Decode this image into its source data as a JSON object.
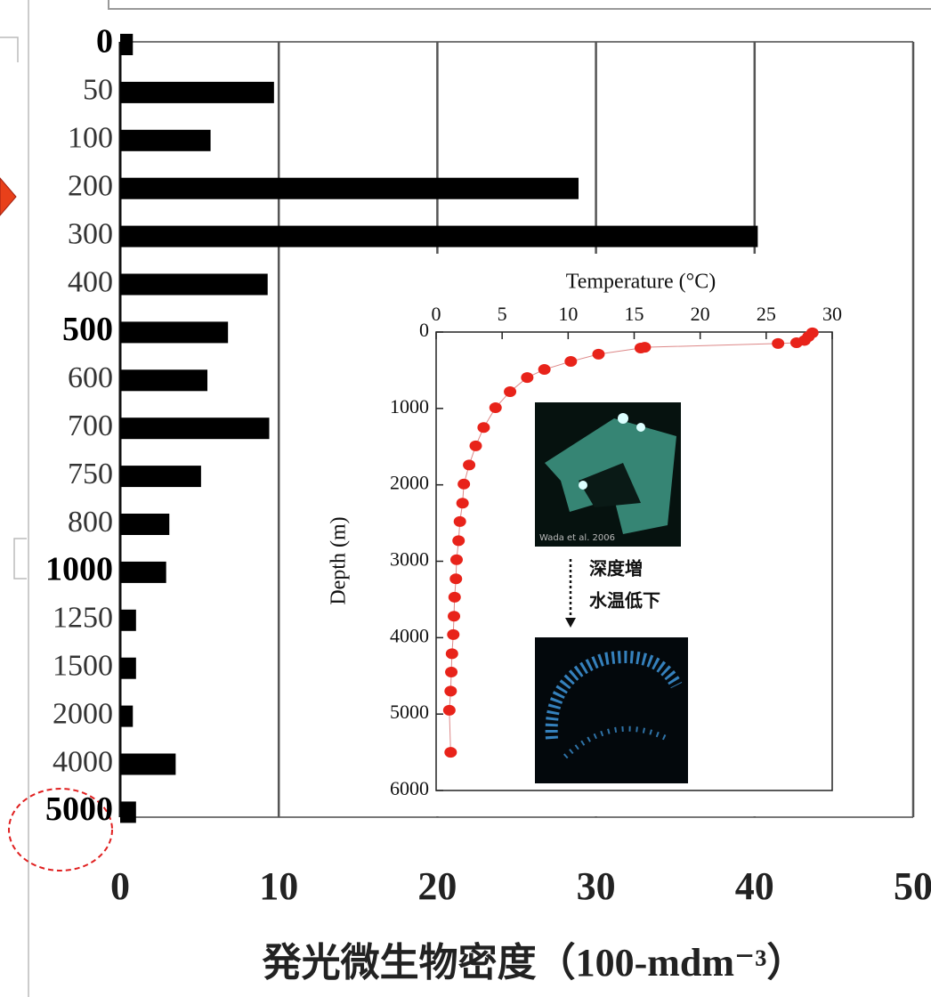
{
  "chart_data": [
    {
      "type": "bar",
      "orientation": "horizontal",
      "categories": [
        "0",
        "50",
        "100",
        "200",
        "300",
        "400",
        "500",
        "600",
        "700",
        "750",
        "800",
        "1000",
        "1250",
        "1500",
        "2000",
        "4000",
        "5000"
      ],
      "values": [
        0.8,
        9.7,
        5.7,
        28.9,
        40.2,
        9.3,
        6.8,
        5.5,
        9.4,
        5.1,
        3.1,
        2.9,
        1.0,
        1.0,
        0.8,
        3.5,
        1.0
      ],
      "color": "#000000",
      "xlim": [
        0,
        50
      ],
      "xticks": [
        0,
        10,
        20,
        30,
        40,
        50
      ],
      "xlabel": "発光微生物密度（100-mdm⁻³）",
      "grid": true
    },
    {
      "type": "scatter",
      "xlabel": "Temperature (°C)",
      "ylabel": "Depth (m)",
      "x": [
        28.5,
        28.2,
        27.9,
        27.3,
        25.9,
        15.8,
        15.5,
        12.3,
        10.2,
        8.2,
        6.9,
        5.6,
        4.5,
        3.6,
        3.0,
        2.5,
        2.1,
        2.0,
        1.8,
        1.7,
        1.55,
        1.5,
        1.4,
        1.35,
        1.3,
        1.2,
        1.15,
        1.1,
        1.0,
        1.1
      ],
      "values": [
        10,
        60,
        110,
        140,
        150,
        200,
        210,
        290,
        385,
        490,
        595,
        780,
        990,
        1250,
        1490,
        1740,
        1990,
        2240,
        2480,
        2730,
        2980,
        3230,
        3470,
        3720,
        3960,
        4210,
        4450,
        4700,
        4950,
        5500
      ],
      "color": "#e8231a",
      "xlim": [
        0,
        30
      ],
      "xticks": [
        0,
        5,
        10,
        15,
        20,
        25,
        30
      ],
      "ylim": [
        6000,
        0
      ],
      "yticks": [
        0,
        1000,
        2000,
        3000,
        4000,
        5000,
        6000
      ],
      "annotations": [
        "深度増",
        "水温低下"
      ],
      "image_credit": "Wada et al. 2006"
    }
  ]
}
